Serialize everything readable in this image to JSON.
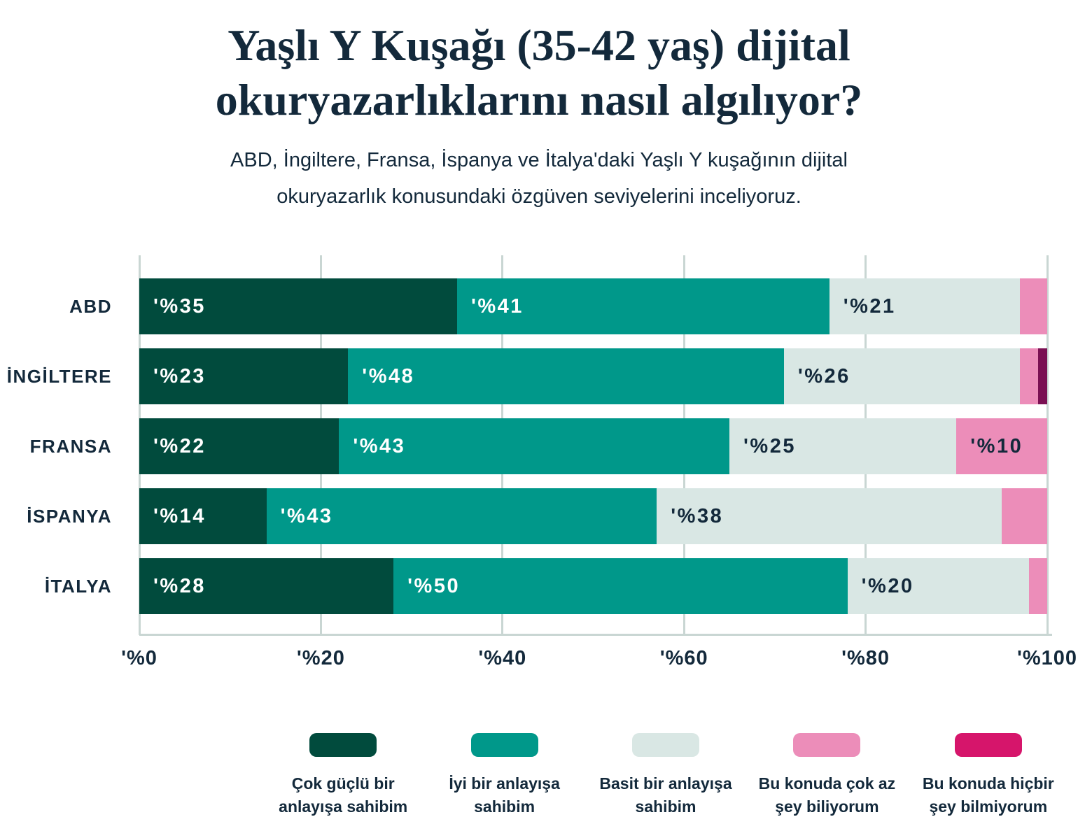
{
  "title": {
    "lines": [
      "Yaşlı Y Kuşağı (35-42 yaş) dijital",
      "okuryazarlıklarını nasıl algılıyor?"
    ]
  },
  "subtitle": {
    "lines": [
      "ABD, İngiltere, Fransa, İspanya ve İtalya'daki Yaşlı Y kuşağının dijital",
      "okuryazarlık konusundaki özgüven seviyelerini inceliyoruz."
    ]
  },
  "colors": {
    "navy": "#13293B",
    "background": "#FFFFFF",
    "gridline": "#C9D6D3",
    "white_label": "#FFFFFF"
  },
  "chart_data": {
    "type": "bar",
    "orientation": "horizontal",
    "stacked": true,
    "grid": true,
    "legend_position": "bottom",
    "xlim": [
      0,
      100
    ],
    "x_ticks": [
      "'%0",
      "'%20",
      "'%40",
      "'%60",
      "'%80",
      "'%100"
    ],
    "categories": [
      "ABD",
      "İNGİLTERE",
      "FRANSA",
      "İSPANYA",
      "İTALYA"
    ],
    "series": [
      {
        "name": "Çok güçlü bir anlayışa sahibim",
        "color": "#014B3D",
        "label_color": "#FFFFFF",
        "values": [
          35,
          23,
          22,
          14,
          28
        ]
      },
      {
        "name": "İyi bir anlayışa sahibim",
        "color": "#00988A",
        "label_color": "#FFFFFF",
        "values": [
          41,
          48,
          43,
          43,
          50
        ]
      },
      {
        "name": "Basit bir anlayışa sahibim",
        "color": "#D9E7E4",
        "label_color": "#13293B",
        "values": [
          21,
          26,
          25,
          38,
          20
        ]
      },
      {
        "name": "Bu konuda çok az şey biliyorum",
        "color": "#EC8DB9",
        "label_color": "#13293B",
        "values": [
          3,
          2,
          10,
          5,
          2
        ]
      },
      {
        "name": "Bu konuda hiçbir şey bilmiyorum",
        "color": "#7A1053",
        "label_color": "#FFFFFF",
        "values": [
          0,
          1,
          0,
          0,
          0
        ]
      }
    ],
    "bar_labels": [
      [
        "'%35",
        "'%41",
        "'%21",
        "",
        ""
      ],
      [
        "'%23",
        "'%48",
        "'%26",
        "",
        ""
      ],
      [
        "'%22",
        "'%43",
        "'%25",
        "'%10",
        ""
      ],
      [
        "'%14",
        "'%43",
        "'%38",
        "",
        ""
      ],
      [
        "'%28",
        "'%50",
        "'%20",
        "",
        ""
      ]
    ]
  },
  "legend": {
    "items": [
      {
        "color": "#014B3D",
        "lines": [
          "Çok güçlü bir",
          "anlayışa sahibim"
        ]
      },
      {
        "color": "#00988A",
        "lines": [
          "İyi bir anlayışa",
          "sahibim"
        ]
      },
      {
        "color": "#D9E7E4",
        "lines": [
          "Basit bir anlayışa",
          "sahibim"
        ]
      },
      {
        "color": "#EC8DB9",
        "lines": [
          "Bu konuda çok az",
          "şey biliyorum"
        ]
      },
      {
        "color": "#D6156B",
        "lines": [
          "Bu konuda hiçbir",
          "şey bilmiyorum"
        ]
      }
    ]
  }
}
